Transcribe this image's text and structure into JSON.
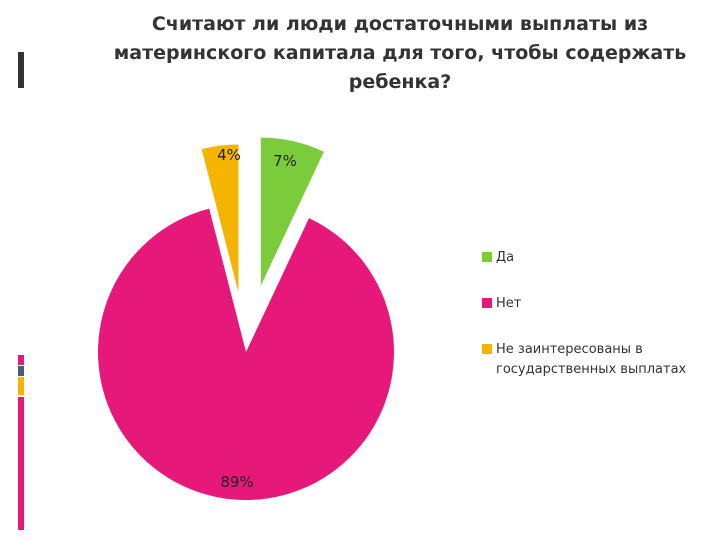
{
  "chart_data": {
    "type": "pie",
    "title": "Считают ли люди достаточными выплаты из материнского капитала для того, чтобы содержать ребенка?",
    "categories": [
      "Да",
      "Нет",
      "Не заинтересованы в государственных выплатах"
    ],
    "values": [
      7,
      89,
      4
    ],
    "data_labels": [
      "7%",
      "89%",
      "4%"
    ],
    "colors": [
      "#7ACC3A",
      "#E6197A",
      "#F5B400"
    ],
    "exploded": true,
    "legend_position": "right"
  },
  "legend_lines": [
    [
      "Да"
    ],
    [
      "Нет"
    ],
    [
      "Не заинтересованы в",
      "государственных выплатах"
    ]
  ],
  "decor": {
    "left_bar_colors": [
      "#333333",
      "#E6197A",
      "#4A5A7A",
      "#F5B400"
    ]
  }
}
